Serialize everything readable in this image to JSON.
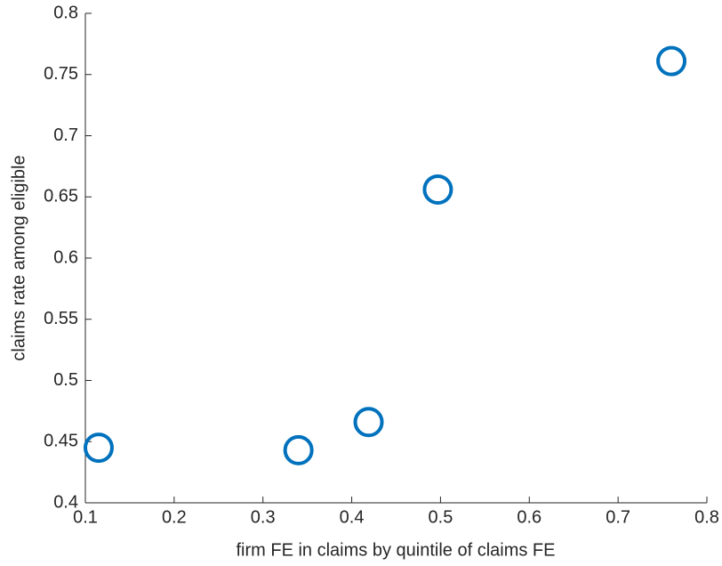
{
  "chart_data": {
    "type": "scatter",
    "x_label": "firm FE in claims by quintile of claims FE",
    "y_label": "claims rate among eligible",
    "series": [
      {
        "color": "#0072BD",
        "x": [
          0.115,
          0.34,
          0.419,
          0.497,
          0.76
        ],
        "values": [
          0.445,
          0.443,
          0.466,
          0.656,
          0.761
        ]
      }
    ],
    "xlim": [
      0.1,
      0.8
    ],
    "xticks": [
      0.1,
      0.2,
      0.3,
      0.4,
      0.5,
      0.6,
      0.7,
      0.8
    ],
    "ylim": [
      0.4,
      0.8
    ],
    "yticks": [
      0.4,
      0.45,
      0.5,
      0.55,
      0.6,
      0.65,
      0.7,
      0.75,
      0.8
    ],
    "grid": false
  }
}
